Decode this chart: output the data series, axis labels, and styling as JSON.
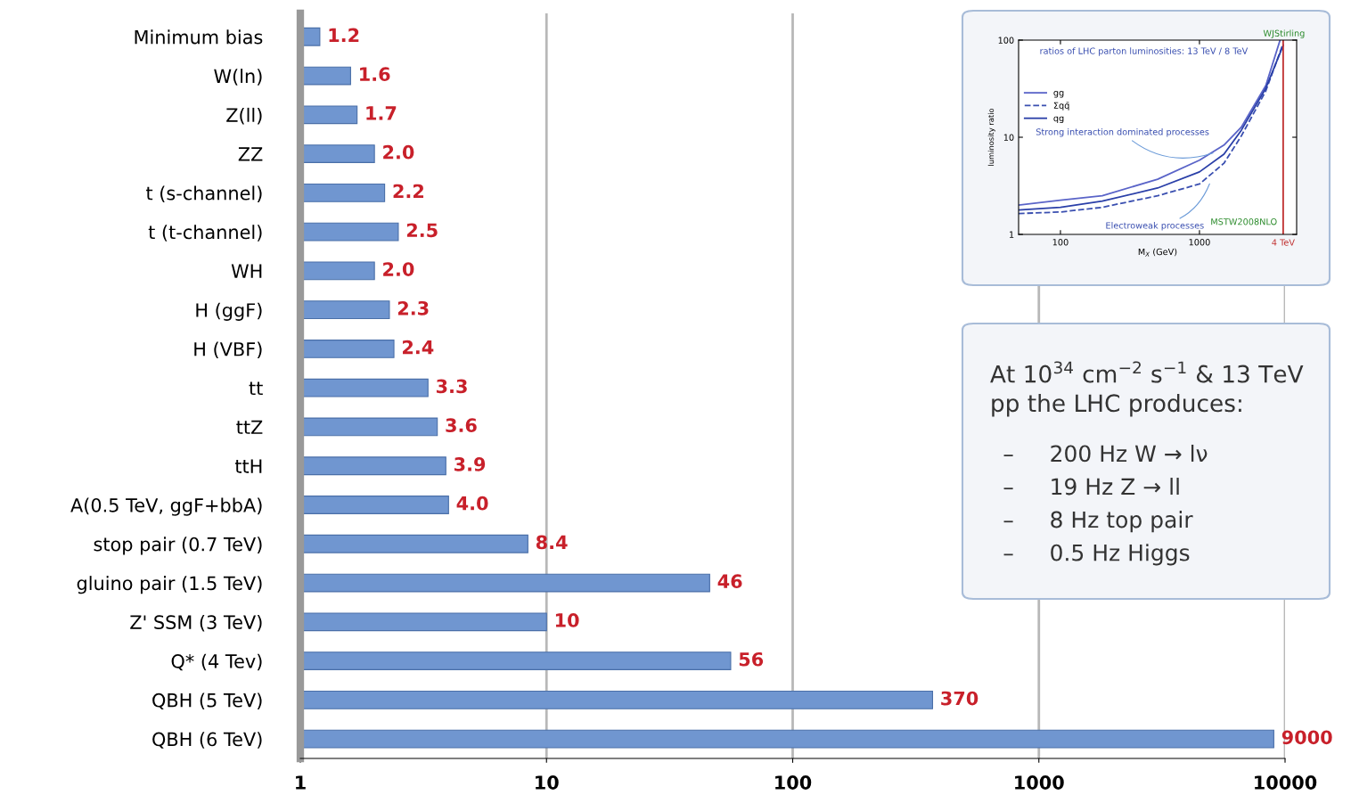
{
  "chart_data": [
    {
      "type": "bar",
      "orientation": "horizontal",
      "categories": [
        "Minimum bias",
        "W(ln)",
        "Z(ll)",
        "ZZ",
        "t (s-channel)",
        "t (t-channel)",
        "WH",
        "H (ggF)",
        "H (VBF)",
        "tt",
        "ttZ",
        "ttH",
        "A(0.5 TeV, ggF+bbA)",
        "stop pair (0.7 TeV)",
        "gluino pair (1.5 TeV)",
        "Z' SSM (3 TeV)",
        "Q* (4 Tev)",
        "QBH (5 TeV)",
        "QBH (6 TeV)"
      ],
      "values": [
        1.2,
        1.6,
        1.7,
        2.0,
        2.2,
        2.5,
        2.0,
        2.3,
        2.4,
        3.3,
        3.6,
        3.9,
        4.0,
        8.4,
        46,
        10,
        56,
        370,
        9000
      ],
      "value_labels": [
        "1.2",
        "1.6",
        "1.7",
        "2.0",
        "2.2",
        "2.5",
        "2.0",
        "2.3",
        "2.4",
        "3.3",
        "3.6",
        "3.9",
        "4.0",
        "8.4",
        "46",
        "10",
        "56",
        "370",
        "9000"
      ],
      "color": "#7096d0",
      "log": "x",
      "xlim": [
        1,
        10000
      ],
      "xticks": [
        1,
        10,
        100,
        1000,
        10000
      ],
      "grid": "x"
    },
    {
      "type": "line",
      "title": "ratios of LHC parton luminosities: 13 TeV / 8 TeV",
      "xlabel": "M$_{X}$ (GeV)",
      "ylabel": "luminosity ratio",
      "log": "xy",
      "xlim": [
        50,
        5000
      ],
      "ylim": [
        1,
        100
      ],
      "xticks": [
        100,
        1000
      ],
      "yticks": [
        1,
        10,
        100
      ],
      "legend": "left",
      "series": [
        {
          "name": "gg",
          "color": "#5a64c8",
          "line_style": "solid",
          "x": [
            50,
            100,
            200,
            500,
            1000,
            1500,
            2000,
            3000,
            3800
          ],
          "values": [
            2.0,
            2.25,
            2.5,
            3.7,
            5.8,
            8.3,
            12.7,
            34,
            100
          ]
        },
        {
          "name": "Σqq̄",
          "color": "#3a4fb0",
          "line_style": "dashed",
          "x": [
            50,
            100,
            200,
            500,
            1000,
            1500,
            2000,
            3000,
            4000
          ],
          "values": [
            1.64,
            1.7,
            1.9,
            2.5,
            3.3,
            5.4,
            10.3,
            30,
            92
          ]
        },
        {
          "name": "qg",
          "color": "#2a3fa8",
          "line_style": "solid",
          "x": [
            50,
            100,
            200,
            500,
            1000,
            1500,
            2000,
            3000,
            4000
          ],
          "values": [
            1.78,
            1.9,
            2.2,
            3.0,
            4.4,
            6.7,
            11.8,
            32,
            88
          ]
        }
      ],
      "ref_lines": [
        {
          "axis": "x",
          "value": 4000,
          "label": "4 TeV",
          "color": "#c03030"
        }
      ],
      "annotations": [
        {
          "text": "Strong interaction dominated processes",
          "x": 1300,
          "y": 7
        },
        {
          "text": "Electroweak processes",
          "x": 1200,
          "y": 3.5
        },
        "MSTW2008NLO",
        "WJStirling"
      ]
    },
    {
      "type": "other",
      "annotations": [
        "At 10$^{34}$ cm$^{−2}$ s$^{−1}$ & 13 TeV\npp the LHC produces:",
        "–     200 Hz W → lν",
        "–     19 Hz Z → ll",
        "–     8 Hz top pair",
        "–     0.5 Hz Higgs"
      ]
    }
  ]
}
